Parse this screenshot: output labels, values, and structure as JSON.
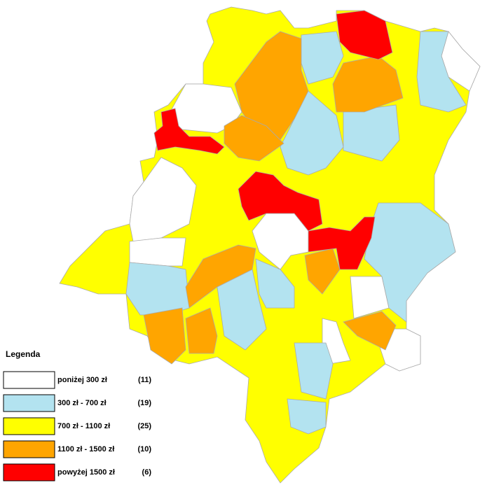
{
  "legend": {
    "title": "Legenda",
    "items": [
      {
        "label": "poniżej 300 zł",
        "count": "(11)",
        "color": "#ffffff"
      },
      {
        "label": "300 zł - 700 zł",
        "count": "(19)",
        "color": "#b3e3f0"
      },
      {
        "label": "700 zł - 1100 zł",
        "count": "(25)",
        "color": "#ffff00"
      },
      {
        "label": "1100 zł - 1500 zł",
        "count": "(10)",
        "color": "#ffa500"
      },
      {
        "label": "powyżej 1500 zł",
        "count": "(6)",
        "color": "#ff0000"
      }
    ]
  }
}
